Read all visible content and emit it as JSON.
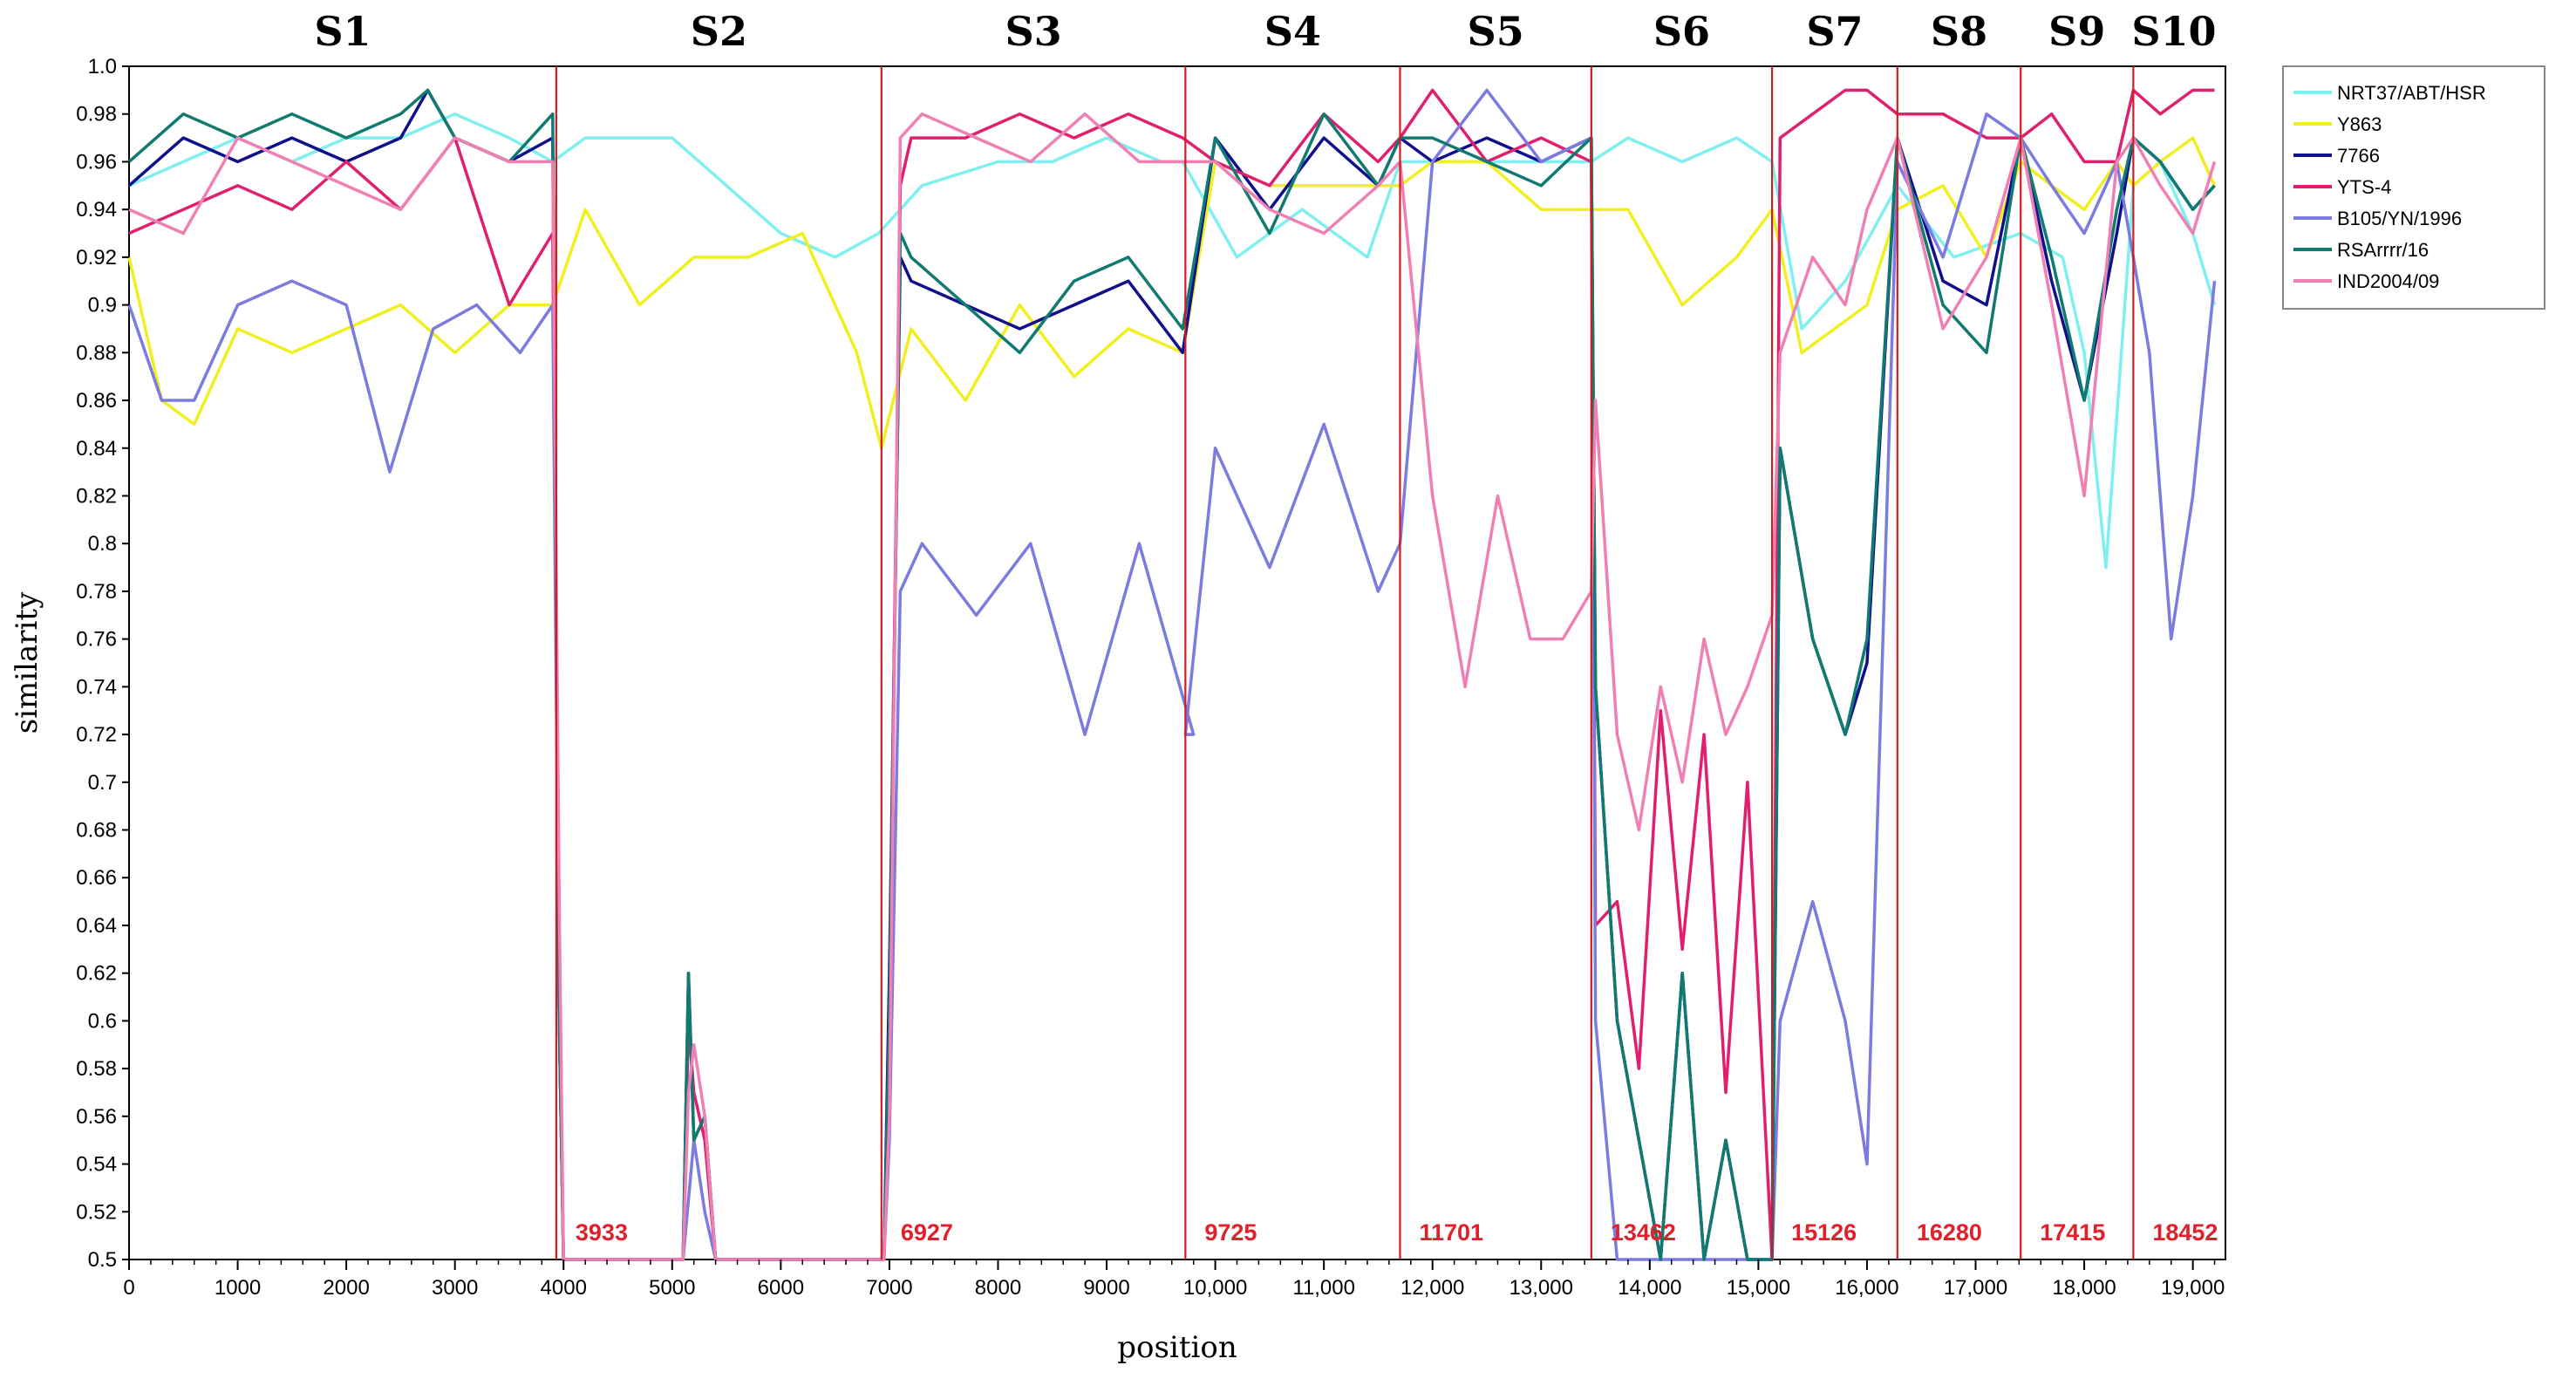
{
  "chart_data": {
    "type": "line",
    "title": "",
    "xlabel": "position",
    "ylabel": "similarity",
    "xlim": [
      0,
      19300
    ],
    "ylim": [
      0.5,
      1.0
    ],
    "grid": false,
    "legend_position": "right",
    "y_ticks": [
      "1.0",
      "0.98",
      "0.96",
      "0.94",
      "0.92",
      "0.9",
      "0.88",
      "0.86",
      "0.84",
      "0.82",
      "0.8",
      "0.78",
      "0.76",
      "0.74",
      "0.72",
      "0.7",
      "0.68",
      "0.66",
      "0.64",
      "0.62",
      "0.6",
      "0.58",
      "0.56",
      "0.54",
      "0.52",
      "0.5"
    ],
    "x_ticks": [
      {
        "value": 0,
        "label": "0"
      },
      {
        "value": 1000,
        "label": "1000"
      },
      {
        "value": 2000,
        "label": "2000"
      },
      {
        "value": 3000,
        "label": "3000"
      },
      {
        "value": 4000,
        "label": "4000"
      },
      {
        "value": 5000,
        "label": "5000"
      },
      {
        "value": 6000,
        "label": "6000"
      },
      {
        "value": 7000,
        "label": "7000"
      },
      {
        "value": 8000,
        "label": "8000"
      },
      {
        "value": 9000,
        "label": "9000"
      },
      {
        "value": 10000,
        "label": "10,000"
      },
      {
        "value": 11000,
        "label": "11,000"
      },
      {
        "value": 12000,
        "label": "12,000"
      },
      {
        "value": 13000,
        "label": "13,000"
      },
      {
        "value": 14000,
        "label": "14,000"
      },
      {
        "value": 15000,
        "label": "15,000"
      },
      {
        "value": 16000,
        "label": "16,000"
      },
      {
        "value": 17000,
        "label": "17,000"
      },
      {
        "value": 18000,
        "label": "18,000"
      },
      {
        "value": 19000,
        "label": "19,000"
      }
    ],
    "segments": [
      {
        "label": "S1",
        "start": 0,
        "end": 3933
      },
      {
        "label": "S2",
        "start": 3933,
        "end": 6927
      },
      {
        "label": "S3",
        "start": 6927,
        "end": 9725
      },
      {
        "label": "S4",
        "start": 9725,
        "end": 11701
      },
      {
        "label": "S5",
        "start": 11701,
        "end": 13462
      },
      {
        "label": "S6",
        "start": 13462,
        "end": 15126
      },
      {
        "label": "S7",
        "start": 15126,
        "end": 16280
      },
      {
        "label": "S8",
        "start": 16280,
        "end": 17415
      },
      {
        "label": "S9",
        "start": 17415,
        "end": 18452
      },
      {
        "label": "S10",
        "start": 18452,
        "end": 19200
      }
    ],
    "breakpoints": [
      {
        "position": 3933,
        "label": "3933"
      },
      {
        "position": 6927,
        "label": "6927"
      },
      {
        "position": 9725,
        "label": "9725"
      },
      {
        "position": 11701,
        "label": "11701"
      },
      {
        "position": 13462,
        "label": "13462"
      },
      {
        "position": 15126,
        "label": "15126"
      },
      {
        "position": 16280,
        "label": "16280"
      },
      {
        "position": 17415,
        "label": "17415"
      },
      {
        "position": 18452,
        "label": "18452"
      }
    ],
    "series": [
      {
        "name": "NRT37/ABT/HSR",
        "color": "#7fefef",
        "x": [
          0,
          500,
          1000,
          1500,
          2000,
          2500,
          3000,
          3500,
          3900,
          4200,
          5000,
          5500,
          6000,
          6500,
          6900,
          7300,
          8000,
          8500,
          9000,
          9500,
          9700,
          10200,
          10800,
          11400,
          11701,
          12000,
          12500,
          12900,
          13462,
          13800,
          14300,
          14800,
          15126,
          15400,
          15800,
          16280,
          16800,
          17415,
          17800,
          18000,
          18200,
          18452,
          18700,
          19000,
          19200
        ],
        "y": [
          0.95,
          0.96,
          0.97,
          0.96,
          0.97,
          0.97,
          0.98,
          0.97,
          0.96,
          0.97,
          0.97,
          0.95,
          0.93,
          0.92,
          0.93,
          0.95,
          0.96,
          0.96,
          0.97,
          0.96,
          0.96,
          0.92,
          0.94,
          0.92,
          0.96,
          0.96,
          0.96,
          0.96,
          0.96,
          0.97,
          0.96,
          0.97,
          0.96,
          0.89,
          0.91,
          0.95,
          0.92,
          0.93,
          0.92,
          0.88,
          0.79,
          0.95,
          0.96,
          0.93,
          0.9
        ]
      },
      {
        "name": "Y863",
        "color": "#f0f020",
        "x": [
          0,
          300,
          600,
          1000,
          1500,
          2000,
          2500,
          3000,
          3500,
          3900,
          4200,
          4700,
          5200,
          5700,
          6200,
          6700,
          6927,
          7200,
          7700,
          8200,
          8700,
          9200,
          9700,
          10000,
          10500,
          11000,
          11500,
          11701,
          12000,
          12500,
          13000,
          13462,
          13800,
          14300,
          14800,
          15126,
          15400,
          15700,
          16000,
          16280,
          16700,
          17100,
          17415,
          17700,
          18000,
          18300,
          18452,
          18700,
          19000,
          19200
        ],
        "y": [
          0.92,
          0.86,
          0.85,
          0.89,
          0.88,
          0.89,
          0.9,
          0.88,
          0.9,
          0.9,
          0.94,
          0.9,
          0.92,
          0.92,
          0.93,
          0.88,
          0.84,
          0.89,
          0.86,
          0.9,
          0.87,
          0.89,
          0.88,
          0.96,
          0.95,
          0.95,
          0.95,
          0.95,
          0.96,
          0.96,
          0.94,
          0.94,
          0.94,
          0.9,
          0.92,
          0.94,
          0.88,
          0.89,
          0.9,
          0.94,
          0.95,
          0.92,
          0.96,
          0.95,
          0.94,
          0.96,
          0.95,
          0.96,
          0.97,
          0.95
        ]
      },
      {
        "name": "7766",
        "color": "#10108c",
        "x": [
          0,
          500,
          1000,
          1500,
          2000,
          2500,
          2750,
          3000,
          3500,
          3900,
          3960,
          4000,
          4100,
          5100,
          5150,
          5200,
          5300,
          5400,
          6950,
          7000,
          7100,
          7200,
          7700,
          8200,
          8700,
          9200,
          9700,
          10000,
          10500,
          11000,
          11500,
          11701,
          12000,
          12500,
          13000,
          13462,
          13500,
          13700,
          13900,
          14100,
          14300,
          14500,
          14700,
          14900,
          15126,
          15200,
          15500,
          15800,
          16000,
          16280,
          16700,
          17100,
          17415,
          17700,
          18000,
          18300,
          18452,
          18700,
          19000,
          19200
        ],
        "y": [
          0.95,
          0.97,
          0.96,
          0.97,
          0.96,
          0.97,
          0.99,
          0.97,
          0.96,
          0.97,
          0.6,
          0.5,
          0.5,
          0.5,
          0.62,
          0.55,
          0.56,
          0.5,
          0.5,
          0.62,
          0.92,
          0.91,
          0.9,
          0.89,
          0.9,
          0.91,
          0.88,
          0.97,
          0.94,
          0.97,
          0.95,
          0.97,
          0.96,
          0.97,
          0.96,
          0.97,
          0.74,
          0.6,
          0.55,
          0.5,
          0.62,
          0.5,
          0.55,
          0.5,
          0.5,
          0.84,
          0.76,
          0.72,
          0.75,
          0.97,
          0.91,
          0.9,
          0.97,
          0.91,
          0.86,
          0.93,
          0.97,
          0.96,
          0.94,
          0.95
        ]
      },
      {
        "name": "YTS-4",
        "color": "#e0206e",
        "x": [
          0,
          500,
          1000,
          1500,
          2000,
          2500,
          3000,
          3500,
          3900,
          3960,
          4000,
          4100,
          5100,
          5150,
          5200,
          5300,
          5400,
          6950,
          7000,
          7100,
          7200,
          7700,
          8200,
          8700,
          9200,
          9700,
          10000,
          10500,
          11000,
          11500,
          11701,
          12000,
          12500,
          13000,
          13462,
          13500,
          13700,
          13900,
          14100,
          14300,
          14500,
          14700,
          14900,
          15126,
          15200,
          15500,
          15800,
          16000,
          16280,
          16700,
          17100,
          17415,
          17700,
          18000,
          18300,
          18452,
          18700,
          19000,
          19200
        ],
        "y": [
          0.93,
          0.94,
          0.95,
          0.94,
          0.96,
          0.94,
          0.97,
          0.9,
          0.93,
          0.6,
          0.5,
          0.5,
          0.5,
          0.6,
          0.57,
          0.55,
          0.5,
          0.5,
          0.6,
          0.95,
          0.97,
          0.97,
          0.98,
          0.97,
          0.98,
          0.97,
          0.96,
          0.95,
          0.98,
          0.96,
          0.97,
          0.99,
          0.96,
          0.97,
          0.96,
          0.64,
          0.65,
          0.58,
          0.73,
          0.63,
          0.72,
          0.57,
          0.7,
          0.5,
          0.97,
          0.98,
          0.99,
          0.99,
          0.98,
          0.98,
          0.97,
          0.97,
          0.98,
          0.96,
          0.96,
          0.99,
          0.98,
          0.99,
          0.99
        ]
      },
      {
        "name": "B105/YN/1996",
        "color": "#7b7be0",
        "x": [
          0,
          300,
          600,
          1000,
          1500,
          2000,
          2400,
          2800,
          3200,
          3600,
          3900,
          3960,
          4000,
          4100,
          5100,
          5200,
          5300,
          5400,
          6950,
          7000,
          7100,
          7300,
          7800,
          8300,
          8800,
          9300,
          9800,
          9725,
          10000,
          10500,
          11000,
          11500,
          11701,
          12000,
          12500,
          13000,
          13462,
          13500,
          13700,
          13900,
          14100,
          14300,
          14500,
          14700,
          14900,
          15126,
          15200,
          15500,
          15800,
          16000,
          16280,
          16700,
          17100,
          17415,
          17700,
          18000,
          18300,
          18452,
          18600,
          18800,
          19000,
          19200
        ],
        "y": [
          0.9,
          0.86,
          0.86,
          0.9,
          0.91,
          0.9,
          0.83,
          0.89,
          0.9,
          0.88,
          0.9,
          0.6,
          0.5,
          0.5,
          0.5,
          0.55,
          0.52,
          0.5,
          0.5,
          0.55,
          0.78,
          0.8,
          0.77,
          0.8,
          0.72,
          0.8,
          0.72,
          0.72,
          0.84,
          0.79,
          0.85,
          0.78,
          0.8,
          0.96,
          0.99,
          0.96,
          0.97,
          0.6,
          0.5,
          0.5,
          0.5,
          0.5,
          0.5,
          0.5,
          0.5,
          0.5,
          0.6,
          0.65,
          0.6,
          0.54,
          0.96,
          0.92,
          0.98,
          0.97,
          0.95,
          0.93,
          0.96,
          0.92,
          0.88,
          0.76,
          0.82,
          0.91
        ]
      },
      {
        "name": "RSArrrr/16",
        "color": "#117a70",
        "x": [
          0,
          500,
          1000,
          1500,
          2000,
          2500,
          2750,
          3000,
          3500,
          3900,
          3960,
          4000,
          4100,
          5100,
          5150,
          5200,
          5300,
          5400,
          6950,
          7000,
          7100,
          7200,
          7700,
          8200,
          8700,
          9200,
          9700,
          10000,
          10500,
          11000,
          11500,
          11701,
          12000,
          12500,
          13000,
          13462,
          13500,
          13700,
          13900,
          14100,
          14300,
          14500,
          14700,
          14900,
          15126,
          15200,
          15500,
          15800,
          16000,
          16280,
          16700,
          17100,
          17415,
          17700,
          18000,
          18300,
          18452,
          18700,
          19000,
          19200
        ],
        "y": [
          0.96,
          0.98,
          0.97,
          0.98,
          0.97,
          0.98,
          0.99,
          0.97,
          0.96,
          0.98,
          0.6,
          0.5,
          0.5,
          0.5,
          0.62,
          0.55,
          0.56,
          0.5,
          0.5,
          0.6,
          0.93,
          0.92,
          0.9,
          0.88,
          0.91,
          0.92,
          0.89,
          0.97,
          0.93,
          0.98,
          0.95,
          0.97,
          0.97,
          0.96,
          0.95,
          0.97,
          0.74,
          0.6,
          0.55,
          0.5,
          0.62,
          0.5,
          0.55,
          0.5,
          0.5,
          0.84,
          0.76,
          0.72,
          0.76,
          0.97,
          0.9,
          0.88,
          0.97,
          0.92,
          0.86,
          0.94,
          0.97,
          0.96,
          0.94,
          0.95
        ]
      },
      {
        "name": "IND2004/09",
        "color": "#f080b4",
        "x": [
          0,
          500,
          1000,
          1500,
          2000,
          2500,
          3000,
          3500,
          3900,
          3960,
          4000,
          4100,
          5100,
          5150,
          5200,
          5300,
          5400,
          6950,
          7000,
          7100,
          7300,
          7800,
          8300,
          8800,
          9300,
          9700,
          10000,
          10500,
          11000,
          11500,
          11701,
          12000,
          12300,
          12600,
          12900,
          13200,
          13462,
          13500,
          13700,
          13900,
          14100,
          14300,
          14500,
          14700,
          14900,
          15126,
          15200,
          15500,
          15800,
          16000,
          16280,
          16700,
          17100,
          17415,
          17700,
          18000,
          18300,
          18452,
          18700,
          19000,
          19200
        ],
        "y": [
          0.94,
          0.93,
          0.97,
          0.96,
          0.95,
          0.94,
          0.97,
          0.96,
          0.96,
          0.65,
          0.5,
          0.5,
          0.5,
          0.57,
          0.59,
          0.56,
          0.5,
          0.5,
          0.56,
          0.97,
          0.98,
          0.97,
          0.96,
          0.98,
          0.96,
          0.96,
          0.96,
          0.94,
          0.93,
          0.95,
          0.96,
          0.82,
          0.74,
          0.82,
          0.76,
          0.76,
          0.78,
          0.86,
          0.72,
          0.68,
          0.74,
          0.7,
          0.76,
          0.72,
          0.74,
          0.77,
          0.88,
          0.92,
          0.9,
          0.94,
          0.97,
          0.89,
          0.92,
          0.97,
          0.9,
          0.82,
          0.96,
          0.97,
          0.95,
          0.93,
          0.96
        ]
      }
    ]
  }
}
